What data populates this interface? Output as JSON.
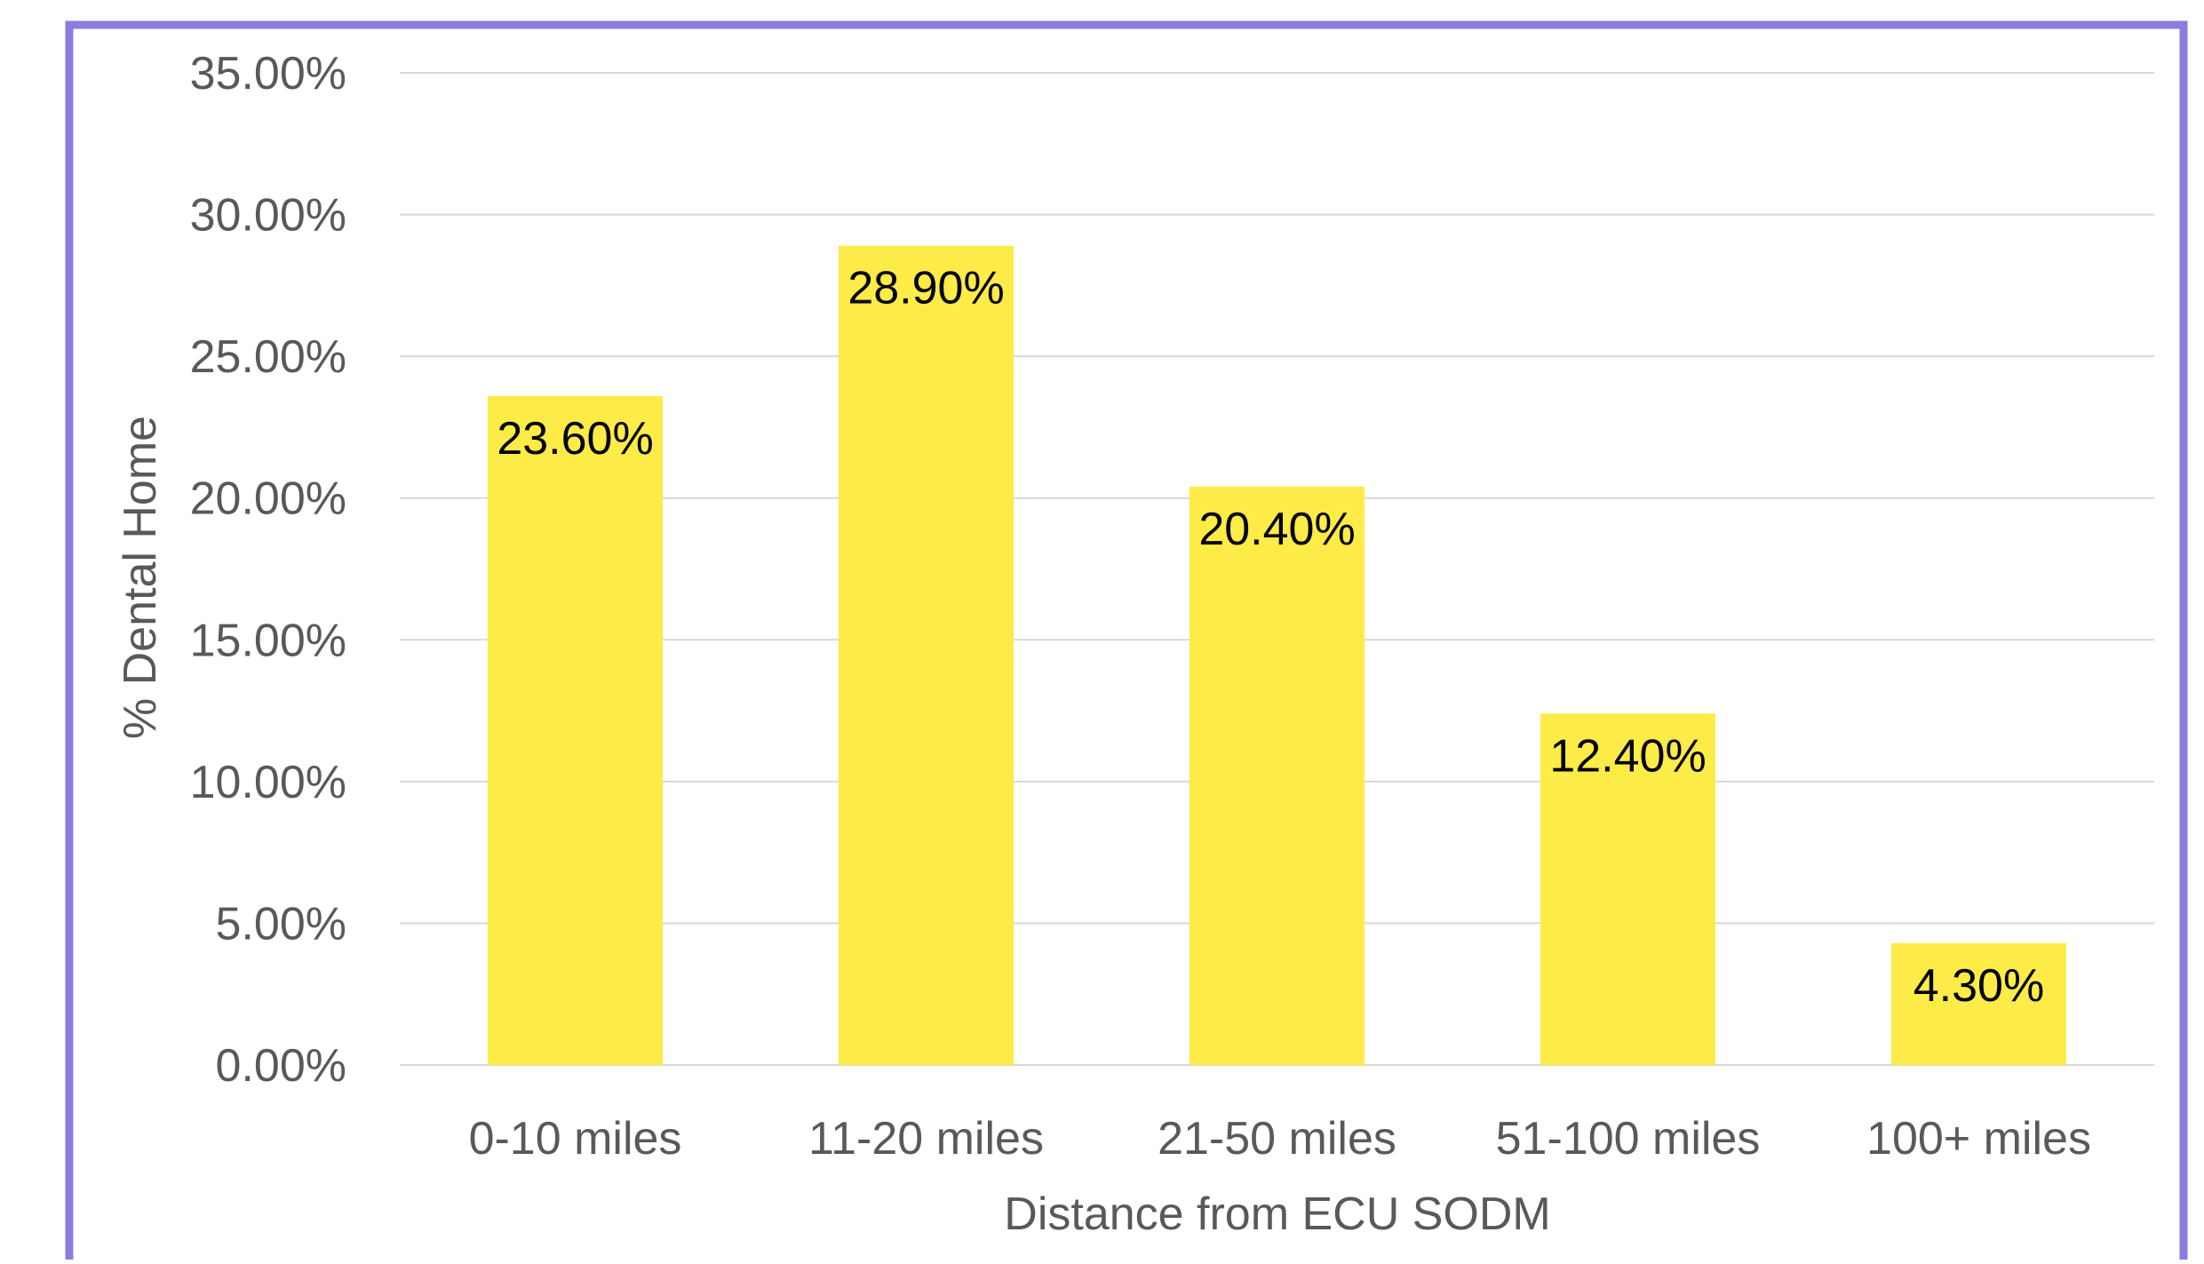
{
  "chart_data": {
    "type": "bar",
    "title": "",
    "xlabel": "Distance from ECU SODM",
    "ylabel": "% Dental Home",
    "categories": [
      "0-10 miles",
      "11-20 miles",
      "21-50 miles",
      "51-100 miles",
      "100+ miles"
    ],
    "values": [
      23.6,
      28.9,
      20.4,
      12.4,
      4.3
    ],
    "data_labels": [
      "23.60%",
      "28.90%",
      "20.40%",
      "12.40%",
      "4.30%"
    ],
    "ylim": [
      0,
      35
    ],
    "yticks": [
      0,
      5,
      10,
      15,
      20,
      25,
      30,
      35
    ],
    "ytick_labels": [
      "0.00%",
      "5.00%",
      "10.00%",
      "15.00%",
      "20.00%",
      "25.00%",
      "30.00%",
      "35.00%"
    ],
    "grid": true,
    "legend": "none"
  },
  "colors": {
    "bar": "#FDEB47",
    "frame_border": "#8B7CE0",
    "gridline": "#D9D9D9",
    "axis_text": "#595959",
    "data_label_text": "#000000"
  }
}
